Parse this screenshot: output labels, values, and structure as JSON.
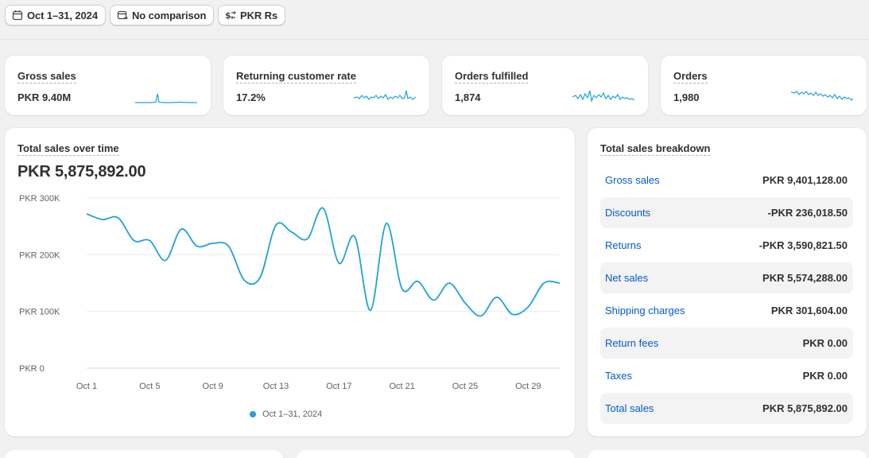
{
  "filters": {
    "date_range": "Oct 1–31, 2024",
    "comparison": "No comparison",
    "currency": "PKR Rs"
  },
  "metrics": [
    {
      "title": "Gross sales",
      "value": "PKR 9.40M"
    },
    {
      "title": "Returning customer rate",
      "value": "17.2%"
    },
    {
      "title": "Orders fulfilled",
      "value": "1,874"
    },
    {
      "title": "Orders",
      "value": "1,980"
    }
  ],
  "chart_card": {
    "title": "Total sales over time",
    "total": "PKR 5,875,892.00"
  },
  "chart_data": {
    "type": "line",
    "title": "Total sales over time",
    "ylim": [
      0,
      300000
    ],
    "y_ticks": [
      "PKR 0",
      "PKR 100K",
      "PKR 200K",
      "PKR 300K"
    ],
    "x_ticks": [
      "Oct 1",
      "Oct 5",
      "Oct 9",
      "Oct 13",
      "Oct 17",
      "Oct 21",
      "Oct 25",
      "Oct 29"
    ],
    "grid": true,
    "legend_position": "bottom",
    "series": [
      {
        "name": "Oct 1–31, 2024",
        "color": "#1fa3d8",
        "x": [
          "Oct 1",
          "Oct 2",
          "Oct 3",
          "Oct 4",
          "Oct 5",
          "Oct 6",
          "Oct 7",
          "Oct 8",
          "Oct 9",
          "Oct 10",
          "Oct 11",
          "Oct 12",
          "Oct 13",
          "Oct 14",
          "Oct 15",
          "Oct 16",
          "Oct 17",
          "Oct 18",
          "Oct 19",
          "Oct 20",
          "Oct 21",
          "Oct 22",
          "Oct 23",
          "Oct 24",
          "Oct 25",
          "Oct 26",
          "Oct 27",
          "Oct 28",
          "Oct 29",
          "Oct 30",
          "Oct 31"
        ],
        "values": [
          272000,
          262000,
          265000,
          225000,
          225000,
          190000,
          245000,
          215000,
          220000,
          215000,
          155000,
          160000,
          252000,
          240000,
          228000,
          282000,
          185000,
          232000,
          102000,
          255000,
          140000,
          153000,
          120000,
          150000,
          115000,
          92000,
          125000,
          95000,
          108000,
          150000,
          150000
        ]
      }
    ]
  },
  "breakdown": {
    "title": "Total sales breakdown",
    "rows": [
      {
        "label": "Gross sales",
        "value": "PKR 9,401,128.00"
      },
      {
        "label": "Discounts",
        "value": "-PKR 236,018.50"
      },
      {
        "label": "Returns",
        "value": "-PKR 3,590,821.50"
      },
      {
        "label": "Net sales",
        "value": "PKR 5,574,288.00"
      },
      {
        "label": "Shipping charges",
        "value": "PKR 301,604.00"
      },
      {
        "label": "Return fees",
        "value": "PKR 0.00"
      },
      {
        "label": "Taxes",
        "value": "PKR 0.00"
      },
      {
        "label": "Total sales",
        "value": "PKR 5,875,892.00"
      }
    ]
  },
  "colors": {
    "accent": "#1fa3d8",
    "link": "#005bd3",
    "background": "#f1f1f1"
  },
  "icons": {
    "date_range": "calendar-icon",
    "comparison": "calendar-compare-icon",
    "currency": "currency-exchange-icon"
  }
}
